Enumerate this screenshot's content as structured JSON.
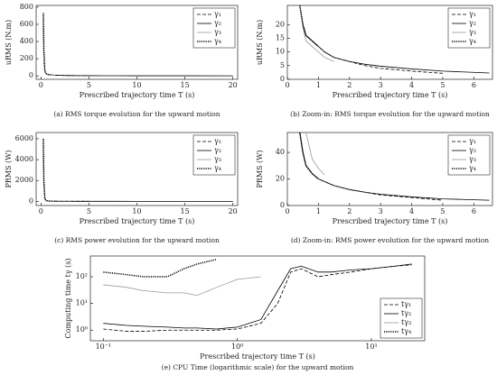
{
  "chart_data": [
    {
      "type": "line",
      "caption": "(a) RMS torque evolution for the upward motion",
      "xlabel": "Prescribed trajectory time T (s)",
      "ylabel": "uRMS (N.m)",
      "x": [
        0.25,
        0.3,
        0.4,
        0.5,
        0.7,
        1,
        1.5,
        2,
        3,
        4,
        5,
        6.5,
        10,
        15,
        20
      ],
      "xlim": [
        -0.5,
        20.5
      ],
      "xticks": [
        0,
        5,
        10,
        15,
        20
      ],
      "ylim": [
        -40,
        820
      ],
      "yticks": [
        0,
        200,
        400,
        600,
        800
      ],
      "legend": "upper right",
      "series": [
        {
          "name": "γ₁",
          "color": "#000000",
          "dash": "dashed",
          "values": [
            730,
            300,
            60,
            30,
            16,
            12,
            8,
            6,
            4,
            3,
            2.5,
            null,
            null,
            null,
            null
          ]
        },
        {
          "name": "γ₂",
          "color": "#000000",
          "dash": "solid",
          "values": [
            730,
            300,
            60,
            30,
            16,
            12,
            8,
            6,
            4,
            3,
            2.5,
            2,
            1.5,
            1.2,
            1
          ]
        },
        {
          "name": "γ₃",
          "color": "#999999",
          "dash": "solid",
          "values": [
            730,
            300,
            60,
            30,
            15,
            10,
            7,
            null,
            null,
            null,
            null,
            null,
            null,
            null,
            null
          ]
        },
        {
          "name": "γ₄",
          "color": "#000000",
          "dash": "dotted",
          "values": [
            730,
            300,
            60,
            30,
            16,
            12,
            null,
            null,
            null,
            null,
            null,
            null,
            null,
            null,
            null
          ]
        }
      ]
    },
    {
      "type": "line",
      "caption": "(b) Zoom-in: RMS torque evolution for the upward motion",
      "xlabel": "Prescribed trajectory time T (s)",
      "ylabel": "uRMS (N.m)",
      "x": [
        0.4,
        0.5,
        0.6,
        0.8,
        1,
        1.2,
        1.5,
        2,
        2.5,
        3,
        4,
        5,
        6.5
      ],
      "xlim": [
        0,
        6.6
      ],
      "xticks": [
        0,
        1,
        2,
        3,
        4,
        5,
        6
      ],
      "ylim": [
        0,
        27
      ],
      "yticks": [
        0,
        5,
        10,
        15,
        20
      ],
      "legend": "upper right",
      "series": [
        {
          "name": "γ₁",
          "color": "#000000",
          "dash": "dashed",
          "values": [
            27,
            20,
            16,
            14,
            12,
            10,
            8,
            6.5,
            5,
            4,
            3,
            2.2,
            null
          ]
        },
        {
          "name": "γ₂",
          "color": "#000000",
          "dash": "solid",
          "values": [
            27,
            20,
            16,
            14,
            12,
            10,
            8,
            6.5,
            5.5,
            4.8,
            3.8,
            3,
            2.3
          ]
        },
        {
          "name": "γ₃",
          "color": "#999999",
          "dash": "solid",
          "values": [
            27,
            19,
            14,
            12,
            10,
            8,
            6.5,
            null,
            null,
            null,
            null,
            null,
            null
          ]
        },
        {
          "name": "γ₄",
          "color": "#000000",
          "dash": "dotted",
          "values": [
            27,
            20,
            16,
            14,
            12,
            null,
            null,
            null,
            null,
            null,
            null,
            null,
            null
          ]
        }
      ]
    },
    {
      "type": "line",
      "caption": "(c) RMS power evolution for the upward motion",
      "xlabel": "Prescribed trajectory time T (s)",
      "ylabel": "PRMS (W)",
      "x": [
        0.25,
        0.3,
        0.4,
        0.5,
        0.7,
        1,
        1.5,
        2,
        3,
        4,
        5,
        6.5,
        10,
        15,
        20
      ],
      "xlim": [
        -0.5,
        20.5
      ],
      "xticks": [
        0,
        5,
        10,
        15,
        20
      ],
      "ylim": [
        -400,
        6600
      ],
      "yticks": [
        0,
        2000,
        4000,
        6000
      ],
      "legend": "upper right",
      "series": [
        {
          "name": "γ₁",
          "color": "#000000",
          "dash": "dashed",
          "values": [
            6000,
            2000,
            300,
            100,
            40,
            20,
            15,
            12,
            8,
            6,
            4.5,
            null,
            null,
            null,
            null
          ]
        },
        {
          "name": "γ₂",
          "color": "#000000",
          "dash": "solid",
          "values": [
            6000,
            2000,
            300,
            100,
            40,
            20,
            15,
            12,
            8,
            6,
            4.5,
            4,
            3,
            2.5,
            2
          ]
        },
        {
          "name": "γ₃",
          "color": "#999999",
          "dash": "solid",
          "values": [
            6000,
            2000,
            300,
            100,
            40,
            23,
            null,
            null,
            null,
            null,
            null,
            null,
            null,
            null,
            null
          ]
        },
        {
          "name": "γ₄",
          "color": "#000000",
          "dash": "dotted",
          "values": [
            6000,
            2000,
            300,
            100,
            40,
            20,
            null,
            null,
            null,
            null,
            null,
            null,
            null,
            null,
            null
          ]
        }
      ]
    },
    {
      "type": "line",
      "caption": "(d) Zoom-in: RMS power evolution for the upward motion",
      "xlabel": "Prescribed trajectory time T (s)",
      "ylabel": "PRMS (W)",
      "x": [
        0.4,
        0.5,
        0.6,
        0.8,
        1,
        1.2,
        1.5,
        2,
        2.5,
        3,
        4,
        5,
        6.5
      ],
      "xlim": [
        0,
        6.6
      ],
      "xticks": [
        0,
        1,
        2,
        3,
        4,
        5,
        6
      ],
      "ylim": [
        0,
        55
      ],
      "yticks": [
        0,
        20,
        40
      ],
      "legend": "upper right",
      "series": [
        {
          "name": "γ₁",
          "color": "#000000",
          "dash": "dashed",
          "values": [
            55,
            40,
            30,
            24,
            20,
            18,
            15,
            12,
            10,
            8,
            6,
            4,
            null
          ]
        },
        {
          "name": "γ₂",
          "color": "#000000",
          "dash": "solid",
          "values": [
            55,
            40,
            30,
            24,
            20,
            18,
            15,
            12,
            10,
            8.5,
            6.5,
            5,
            4
          ]
        },
        {
          "name": "γ₃",
          "color": "#999999",
          "dash": "solid",
          "values": [
            null,
            null,
            55,
            35,
            28,
            23,
            null,
            null,
            null,
            null,
            null,
            null,
            null
          ]
        },
        {
          "name": "γ₄",
          "color": "#000000",
          "dash": "dotted",
          "values": [
            55,
            40,
            30,
            24,
            20,
            null,
            null,
            null,
            null,
            null,
            null,
            null,
            null
          ]
        }
      ]
    },
    {
      "type": "line",
      "caption": "(e) CPU Time (logarithmic scale) for the upward motion",
      "xlabel": "Prescribed trajectory time T (s)",
      "ylabel": "Computing time tγ (s)",
      "xscale": "log",
      "yscale": "log",
      "x": [
        0.1,
        0.15,
        0.2,
        0.3,
        0.4,
        0.5,
        0.7,
        1,
        1.5,
        2,
        2.5,
        3,
        4,
        5,
        7,
        10,
        15,
        20
      ],
      "xlim": [
        0.08,
        25
      ],
      "xticks": [
        {
          "value": 0.1,
          "label": "10⁻¹"
        },
        {
          "value": 1,
          "label": "10⁰"
        },
        {
          "value": 10,
          "label": "10¹"
        }
      ],
      "ylim": [
        0.4,
        600
      ],
      "yticks": [
        {
          "value": 1,
          "label": "10⁰"
        },
        {
          "value": 10,
          "label": "10¹"
        },
        {
          "value": 100,
          "label": "10²"
        }
      ],
      "legend": "lower right",
      "series": [
        {
          "name": "tγ₁",
          "color": "#000000",
          "dash": "dashed",
          "values": [
            1.1,
            0.9,
            0.9,
            1,
            1,
            1,
            1,
            1.1,
            1.8,
            10,
            150,
            200,
            100,
            120,
            150,
            200,
            250,
            280
          ]
        },
        {
          "name": "tγ₂",
          "color": "#000000",
          "dash": "solid",
          "values": [
            1.8,
            1.5,
            1.4,
            1.3,
            1.2,
            1.2,
            1.1,
            1.3,
            2.5,
            30,
            200,
            250,
            150,
            150,
            180,
            200,
            250,
            300
          ]
        },
        {
          "name": "tγ₃",
          "color": "#999999",
          "dash": "solid",
          "values": [
            50,
            40,
            30,
            25,
            25,
            20,
            40,
            80,
            100,
            null,
            null,
            null,
            null,
            null,
            null,
            null,
            null,
            null
          ]
        },
        {
          "name": "tγ₄",
          "color": "#000000",
          "dash": "dotted",
          "values": [
            150,
            120,
            100,
            100,
            200,
            300,
            450,
            null,
            null,
            null,
            null,
            null,
            null,
            null,
            null,
            null,
            null,
            null
          ]
        }
      ]
    }
  ]
}
